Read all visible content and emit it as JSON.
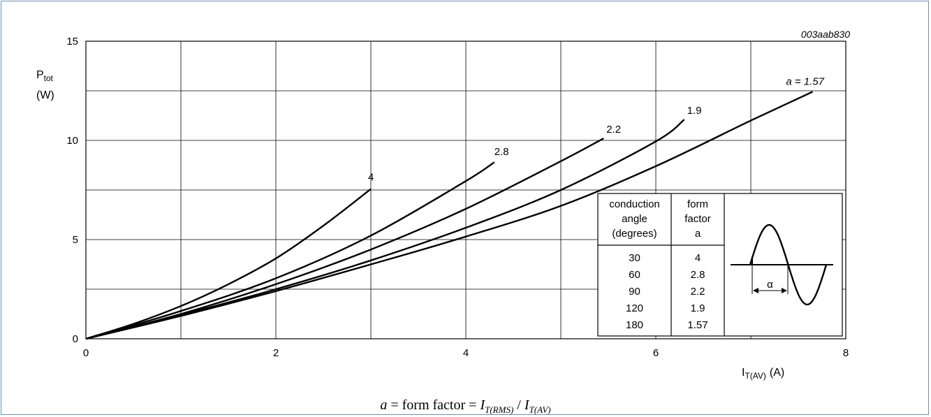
{
  "chart_data": {
    "type": "line",
    "figure_id": "003aab830",
    "ylabel": "P",
    "ylabel_sub": "tot",
    "yunit": "(W)",
    "xlabel": "I",
    "xlabel_sub": "T(AV)",
    "xunit": "(A)",
    "xlim": [
      0,
      8
    ],
    "ylim": [
      0,
      15
    ],
    "xticks": [
      0,
      2,
      4,
      6,
      8
    ],
    "yticks": [
      0,
      5,
      10,
      15
    ],
    "grid": true,
    "series": [
      {
        "name": "4",
        "x": [
          0,
          0.5,
          1,
          1.5,
          2,
          2.5,
          3
        ],
        "y": [
          0,
          0.75,
          1.65,
          2.75,
          4.05,
          5.7,
          7.55
        ]
      },
      {
        "name": "2.8",
        "x": [
          0,
          1,
          2,
          3,
          4,
          4.3
        ],
        "y": [
          0,
          1.4,
          3.05,
          5.2,
          7.95,
          8.9
        ]
      },
      {
        "name": "2.2",
        "x": [
          0,
          1,
          2,
          3,
          4,
          5,
          5.45
        ],
        "y": [
          0,
          1.25,
          2.75,
          4.5,
          6.55,
          8.95,
          10.1
        ]
      },
      {
        "name": "1.9",
        "x": [
          0,
          1,
          2,
          3,
          4,
          5,
          6,
          6.3
        ],
        "y": [
          0,
          1.2,
          2.5,
          3.95,
          5.6,
          7.5,
          9.95,
          11.05
        ]
      },
      {
        "name": "a = 1.57",
        "x": [
          0,
          1,
          2,
          3,
          4,
          5,
          6,
          7,
          7.65
        ],
        "y": [
          0,
          1.15,
          2.4,
          3.75,
          5.15,
          6.7,
          8.7,
          11.0,
          12.45
        ]
      }
    ],
    "table": {
      "headers": [
        [
          "conduction",
          "angle",
          "(degrees)"
        ],
        [
          "form",
          "factor",
          "a"
        ]
      ],
      "rows": [
        [
          "30",
          "4"
        ],
        [
          "60",
          "2.8"
        ],
        [
          "90",
          "2.2"
        ],
        [
          "120",
          "1.9"
        ],
        [
          "180",
          "1.57"
        ]
      ],
      "waveform_symbol": "α"
    }
  },
  "formula": {
    "a": "a",
    "equals_text": " = form factor = ",
    "i1": "I",
    "i1_sub": "T(RMS)",
    "slash": " / ",
    "i2": "I",
    "i2_sub": "T(AV)"
  }
}
